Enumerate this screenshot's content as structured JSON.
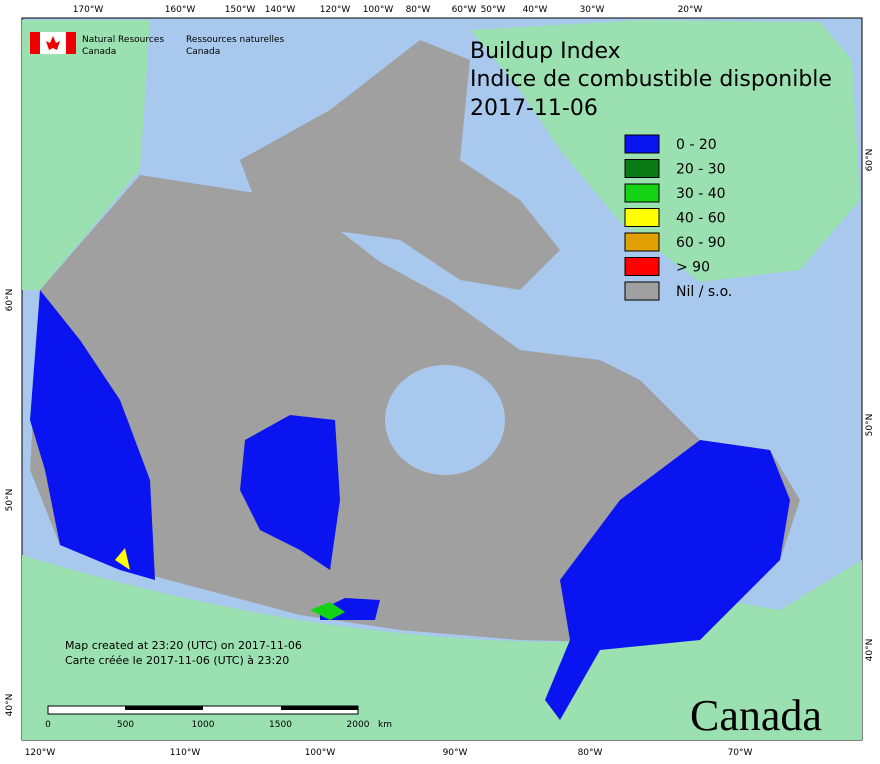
{
  "header": {
    "title": "Buildup Index",
    "subtitle": "Indice de combustible disponible",
    "date": "2017-11-06"
  },
  "agency": {
    "en": [
      "Natural Resources",
      "Canada"
    ],
    "fr": [
      "Ressources naturelles",
      "Canada"
    ]
  },
  "legend": [
    {
      "label": "0 - 20",
      "color": "#0a14f0"
    },
    {
      "label": "20 - 30",
      "color": "#0a7a14"
    },
    {
      "label": "30 - 40",
      "color": "#14d214"
    },
    {
      "label": "40 - 60",
      "color": "#ffff00"
    },
    {
      "label": "60 - 90",
      "color": "#e0a000"
    },
    {
      "label": "> 90",
      "color": "#ff0000"
    },
    {
      "label": "Nil / s.o.",
      "color": "#a0a0a0"
    }
  ],
  "graticule": {
    "top": [
      "170°W",
      "160°W",
      "150°W",
      "140°W",
      "120°W",
      "100°W",
      "80°W",
      "60°W",
      "50°W",
      "40°W",
      "30°W",
      "20°W"
    ],
    "bottom": [
      "120°W",
      "110°W",
      "100°W",
      "90°W",
      "80°W",
      "70°W"
    ],
    "left": [
      "60°N",
      "50°N",
      "40°N"
    ],
    "right": [
      "60°N",
      "50°N",
      "40°N"
    ]
  },
  "footer": {
    "created_en": "Map created at 23:20 (UTC) on 2017-11-06",
    "created_fr": "Carte créée le 2017-11-06 (UTC) à 23:20"
  },
  "scale": {
    "labels": [
      "0",
      "500",
      "1000",
      "1500",
      "2000"
    ],
    "unit": "km"
  },
  "wordmark": "Canada"
}
